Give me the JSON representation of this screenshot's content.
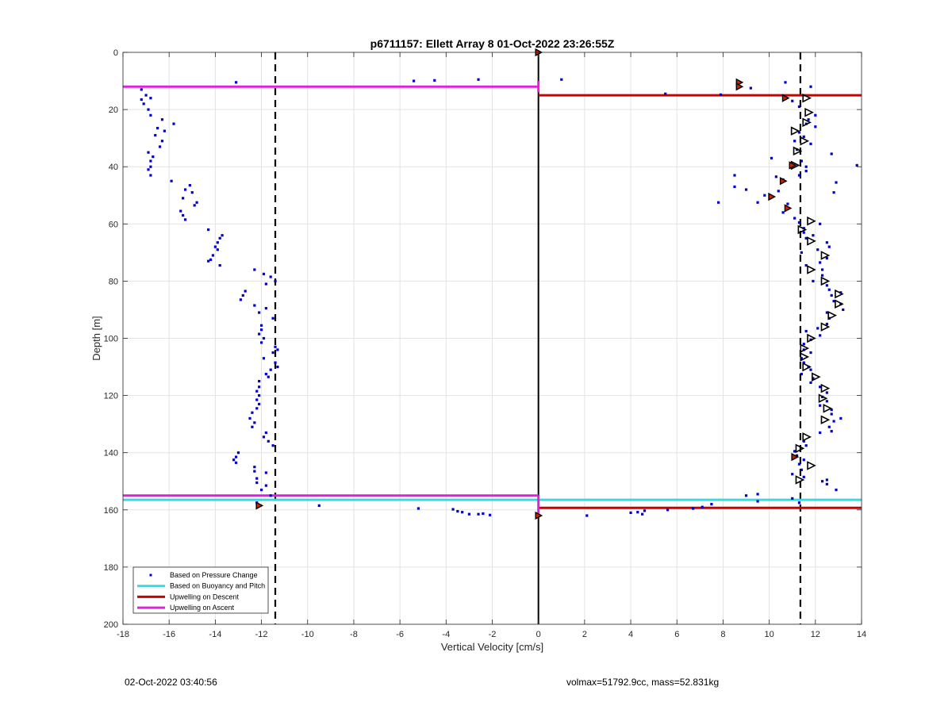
{
  "footer": {
    "timestamp": "02-Oct-2022 03:40:56",
    "params": "volmax=51792.9cc, mass=52.831kg"
  },
  "chart_data": {
    "type": "scatter",
    "title": "p6711157: Ellett Array 8 01-Oct-2022 23:26:55Z",
    "xlabel": "Vertical Velocity [cm/s]",
    "ylabel": "Depth [m]",
    "xlim": [
      -18,
      14
    ],
    "ylim": [
      0,
      200
    ],
    "y_reversed": true,
    "grid": true,
    "xticks": [
      -18,
      -16,
      -14,
      -12,
      -10,
      -8,
      -6,
      -4,
      -2,
      0,
      2,
      4,
      6,
      8,
      10,
      12,
      14
    ],
    "yticks": [
      0,
      20,
      40,
      60,
      80,
      100,
      120,
      140,
      160,
      180,
      200
    ],
    "legend_position": "bottom-left",
    "legend": [
      {
        "label": "Based on Pressure Change",
        "color": "#0000cc",
        "marker": "dot"
      },
      {
        "label": "Based on Buoyancy and Pitch",
        "color": "#33dddd",
        "marker": "line"
      },
      {
        "label": "Upwelling on Descent",
        "color": "#cc0000",
        "marker": "line"
      },
      {
        "label": "Upwelling on Ascent",
        "color": "#dd22dd",
        "marker": "line"
      }
    ],
    "vertical_reference_lines": [
      {
        "x": -11.4,
        "style": "dashed",
        "color": "#000000"
      },
      {
        "x": 11.35,
        "style": "dashed",
        "color": "#000000"
      },
      {
        "x": 0,
        "style": "solid",
        "color": "#000000",
        "y_range": [
          0,
          200
        ]
      }
    ],
    "horizontal_lines": [
      {
        "series": "Upwelling on Ascent",
        "color": "#dd22dd",
        "y": 12,
        "x_range": [
          -18,
          0
        ]
      },
      {
        "series": "Upwelling on Ascent",
        "color": "#dd22dd",
        "y": 155,
        "x_range": [
          -18,
          0
        ]
      },
      {
        "series": "Based on Buoyancy and Pitch",
        "color": "#33dddd",
        "y": 156.5,
        "x_range": [
          -18,
          0
        ]
      },
      {
        "series": "Based on Buoyancy and Pitch",
        "color": "#33dddd",
        "y": 156.5,
        "x_range": [
          0,
          14
        ]
      },
      {
        "series": "Upwelling on Descent",
        "color": "#cc0000",
        "y": 15,
        "x_range": [
          0,
          14
        ]
      },
      {
        "series": "Upwelling on Descent",
        "color": "#cc0000",
        "y": 159.3,
        "x_range": [
          0,
          14
        ]
      }
    ],
    "magenta_zero_segments": [
      {
        "x": 0,
        "y": [
          10,
          14
        ]
      },
      {
        "x": 0,
        "y": [
          155,
          162
        ]
      }
    ],
    "series": [
      {
        "name": "Based on Pressure Change",
        "color": "#0000cc",
        "points": [
          [
            -13.1,
            10.5
          ],
          [
            -17.2,
            13
          ],
          [
            -17.0,
            15
          ],
          [
            -17.2,
            16.5
          ],
          [
            -16.8,
            16
          ],
          [
            -17.1,
            18
          ],
          [
            -16.9,
            20
          ],
          [
            -16.8,
            22
          ],
          [
            -16.3,
            23.5
          ],
          [
            -15.8,
            25
          ],
          [
            -16.5,
            26.5
          ],
          [
            -16.2,
            27.5
          ],
          [
            -16.6,
            29
          ],
          [
            -16.3,
            31
          ],
          [
            -16.4,
            33
          ],
          [
            -16.9,
            35
          ],
          [
            -16.7,
            36.5
          ],
          [
            -16.8,
            38
          ],
          [
            -16.8,
            40
          ],
          [
            -16.9,
            41
          ],
          [
            -16.8,
            43
          ],
          [
            -15.9,
            45
          ],
          [
            -15.1,
            46.5
          ],
          [
            -15.3,
            48
          ],
          [
            -15.0,
            49
          ],
          [
            -15.4,
            51
          ],
          [
            -14.8,
            52.5
          ],
          [
            -14.9,
            53.5
          ],
          [
            -15.5,
            55.5
          ],
          [
            -15.4,
            57
          ],
          [
            -15.3,
            58.5
          ],
          [
            -14.3,
            62
          ],
          [
            -13.7,
            64
          ],
          [
            -13.8,
            65
          ],
          [
            -13.9,
            66.5
          ],
          [
            -14.0,
            68
          ],
          [
            -13.9,
            69
          ],
          [
            -14.1,
            71
          ],
          [
            -14.2,
            72.5
          ],
          [
            -14.3,
            73
          ],
          [
            -13.8,
            74.5
          ],
          [
            -12.3,
            76
          ],
          [
            -11.9,
            77.5
          ],
          [
            -11.6,
            78.5
          ],
          [
            -11.4,
            80
          ],
          [
            -11.8,
            81
          ],
          [
            -12.7,
            83.5
          ],
          [
            -12.8,
            85
          ],
          [
            -12.9,
            86.5
          ],
          [
            -12.3,
            88.5
          ],
          [
            -11.8,
            89.5
          ],
          [
            -12.1,
            91
          ],
          [
            -11.5,
            93
          ],
          [
            -12.0,
            95.5
          ],
          [
            -12.0,
            97
          ],
          [
            -12.1,
            98.5
          ],
          [
            -11.9,
            100
          ],
          [
            -12.0,
            101.5
          ],
          [
            -11.4,
            103
          ],
          [
            -11.3,
            104
          ],
          [
            -11.5,
            105
          ],
          [
            -11.9,
            107
          ],
          [
            -11.4,
            108.5
          ],
          [
            -11.3,
            110
          ],
          [
            -11.6,
            111
          ],
          [
            -11.8,
            112.5
          ],
          [
            -11.7,
            113.5
          ],
          [
            -12.1,
            115
          ],
          [
            -12.1,
            117
          ],
          [
            -12.2,
            118.5
          ],
          [
            -12.1,
            120
          ],
          [
            -12.2,
            121.5
          ],
          [
            -12.1,
            123
          ],
          [
            -12.2,
            124.5
          ],
          [
            -12.4,
            126
          ],
          [
            -12.5,
            128
          ],
          [
            -12.3,
            129.5
          ],
          [
            -12.4,
            131
          ],
          [
            -11.8,
            133
          ],
          [
            -11.9,
            134.5
          ],
          [
            -11.7,
            136
          ],
          [
            -11.5,
            137.5
          ],
          [
            -13.0,
            140
          ],
          [
            -13.1,
            141.5
          ],
          [
            -13.2,
            142.5
          ],
          [
            -13.1,
            143.5
          ],
          [
            -12.3,
            145
          ],
          [
            -12.3,
            146.5
          ],
          [
            -11.8,
            147
          ],
          [
            -12.2,
            149
          ],
          [
            -12.2,
            150.5
          ],
          [
            -11.8,
            151.5
          ],
          [
            -12.0,
            153
          ],
          [
            -11.6,
            155
          ],
          [
            -12.2,
            157.5
          ],
          [
            -12.1,
            158.5
          ],
          [
            -5.4,
            10
          ],
          [
            -4.5,
            9.8
          ],
          [
            -2.6,
            9.5
          ],
          [
            -9.5,
            158.5
          ],
          [
            -5.2,
            159.5
          ],
          [
            -3.7,
            159.8
          ],
          [
            -3.5,
            160.5
          ],
          [
            -3.3,
            160.8
          ],
          [
            -3.0,
            161.5
          ],
          [
            -2.6,
            161.5
          ],
          [
            -2.4,
            161.3
          ],
          [
            -2.1,
            161.8
          ],
          [
            1.0,
            9.5
          ],
          [
            5.5,
            14.5
          ],
          [
            7.9,
            14.8
          ],
          [
            8.7,
            10.5
          ],
          [
            9.2,
            12.5
          ],
          [
            10.7,
            10.5
          ],
          [
            11.8,
            12
          ],
          [
            11.0,
            17
          ],
          [
            11.3,
            19
          ],
          [
            12.0,
            22
          ],
          [
            11.7,
            23.5
          ],
          [
            11.6,
            25
          ],
          [
            12.0,
            26
          ],
          [
            11.3,
            28
          ],
          [
            11.5,
            29.5
          ],
          [
            11.1,
            31
          ],
          [
            11.8,
            32
          ],
          [
            11.2,
            34
          ],
          [
            12.7,
            35.5
          ],
          [
            10.1,
            37
          ],
          [
            11.4,
            38
          ],
          [
            11.6,
            40
          ],
          [
            11.6,
            41.5
          ],
          [
            11.3,
            43
          ],
          [
            13.8,
            39.5
          ],
          [
            8.5,
            43
          ],
          [
            10.3,
            43.5
          ],
          [
            10.6,
            44.5
          ],
          [
            12.9,
            45.5
          ],
          [
            9.0,
            48
          ],
          [
            8.5,
            47
          ],
          [
            10.4,
            48.5
          ],
          [
            12.8,
            49
          ],
          [
            9.8,
            50
          ],
          [
            9.5,
            52.5
          ],
          [
            7.8,
            52.5
          ],
          [
            10.8,
            53
          ],
          [
            10.6,
            56
          ],
          [
            11.1,
            58
          ],
          [
            11.3,
            59.5
          ],
          [
            12.2,
            60
          ],
          [
            11.5,
            61.5
          ],
          [
            11.5,
            63
          ],
          [
            11.9,
            64
          ],
          [
            11.6,
            65
          ],
          [
            12.5,
            66.5
          ],
          [
            12.6,
            68
          ],
          [
            12.1,
            69
          ],
          [
            11.4,
            70
          ],
          [
            12.5,
            72
          ],
          [
            12.2,
            73.5
          ],
          [
            11.6,
            74.5
          ],
          [
            12.3,
            76
          ],
          [
            12.3,
            78
          ],
          [
            11.9,
            80
          ],
          [
            12.5,
            81.5
          ],
          [
            12.6,
            83
          ],
          [
            13.1,
            84
          ],
          [
            12.7,
            85
          ],
          [
            12.8,
            87
          ],
          [
            13.1,
            88
          ],
          [
            13.2,
            90
          ],
          [
            12.5,
            91
          ],
          [
            12.6,
            93
          ],
          [
            12.5,
            95
          ],
          [
            12.1,
            96.5
          ],
          [
            11.6,
            97.5
          ],
          [
            12.2,
            99
          ],
          [
            11.8,
            100.5
          ],
          [
            11.5,
            102
          ],
          [
            11.5,
            104
          ],
          [
            11.8,
            105
          ],
          [
            11.4,
            107
          ],
          [
            11.5,
            108.5
          ],
          [
            11.7,
            110
          ],
          [
            11.8,
            111
          ],
          [
            11.4,
            112.5
          ],
          [
            11.9,
            114
          ],
          [
            11.8,
            115.5
          ],
          [
            12.2,
            117
          ],
          [
            12.5,
            119
          ],
          [
            12.3,
            120.5
          ],
          [
            12.5,
            122
          ],
          [
            12.2,
            123.5
          ],
          [
            12.7,
            125
          ],
          [
            12.7,
            126.5
          ],
          [
            13.1,
            128
          ],
          [
            12.8,
            129
          ],
          [
            12.6,
            131
          ],
          [
            12.7,
            132.5
          ],
          [
            12.2,
            133
          ],
          [
            11.5,
            136
          ],
          [
            11.6,
            137.5
          ],
          [
            11.1,
            139.5
          ],
          [
            11.2,
            141
          ],
          [
            11.5,
            142.5
          ],
          [
            11.3,
            144
          ],
          [
            11.4,
            146
          ],
          [
            11.0,
            147.5
          ],
          [
            11.5,
            148.5
          ],
          [
            12.3,
            150
          ],
          [
            12.5,
            149.5
          ],
          [
            12.5,
            151
          ],
          [
            12.9,
            153
          ],
          [
            9.0,
            155
          ],
          [
            9.5,
            154.5
          ],
          [
            9.5,
            157
          ],
          [
            11.0,
            156
          ],
          [
            11.3,
            157.5
          ],
          [
            7.5,
            158
          ],
          [
            7.1,
            159
          ],
          [
            6.7,
            159.5
          ],
          [
            5.6,
            160
          ],
          [
            4.6,
            160.3
          ],
          [
            4.3,
            160.8
          ],
          [
            4.0,
            161
          ],
          [
            4.5,
            161.5
          ],
          [
            2.1,
            162
          ]
        ]
      },
      {
        "name": "heading-markers",
        "color": "#000000",
        "marker": "triangle",
        "points": [
          [
            11.6,
            16
          ],
          [
            11.7,
            21
          ],
          [
            11.6,
            24.5
          ],
          [
            11.1,
            27.5
          ],
          [
            11.5,
            31
          ],
          [
            11.2,
            34.5
          ],
          [
            11.1,
            39.5
          ],
          [
            11.8,
            59
          ],
          [
            11.4,
            62
          ],
          [
            11.8,
            66
          ],
          [
            12.4,
            71
          ],
          [
            11.8,
            76
          ],
          [
            12.4,
            80
          ],
          [
            13.0,
            84.5
          ],
          [
            13.0,
            88
          ],
          [
            12.7,
            92
          ],
          [
            12.4,
            96
          ],
          [
            11.8,
            100
          ],
          [
            11.5,
            103.5
          ],
          [
            11.5,
            106.5
          ],
          [
            11.6,
            110
          ],
          [
            12.0,
            113.5
          ],
          [
            12.4,
            117.5
          ],
          [
            12.3,
            121
          ],
          [
            12.5,
            124.5
          ],
          [
            12.4,
            128.5
          ],
          [
            11.6,
            134.5
          ],
          [
            11.3,
            138.5
          ],
          [
            11.8,
            144.5
          ],
          [
            11.3,
            149.5
          ]
        ]
      },
      {
        "name": "red-highlight-markers",
        "color": "#cc2200",
        "marker": "filled-triangle",
        "points": [
          [
            0,
            0
          ],
          [
            8.7,
            10.5
          ],
          [
            8.7,
            12
          ],
          [
            10.7,
            16
          ],
          [
            11.0,
            39.5
          ],
          [
            10.6,
            45
          ],
          [
            10.1,
            50.5
          ],
          [
            10.8,
            54.5
          ],
          [
            11.1,
            141.5
          ],
          [
            0,
            162
          ],
          [
            -12.1,
            158.5
          ]
        ]
      }
    ]
  }
}
